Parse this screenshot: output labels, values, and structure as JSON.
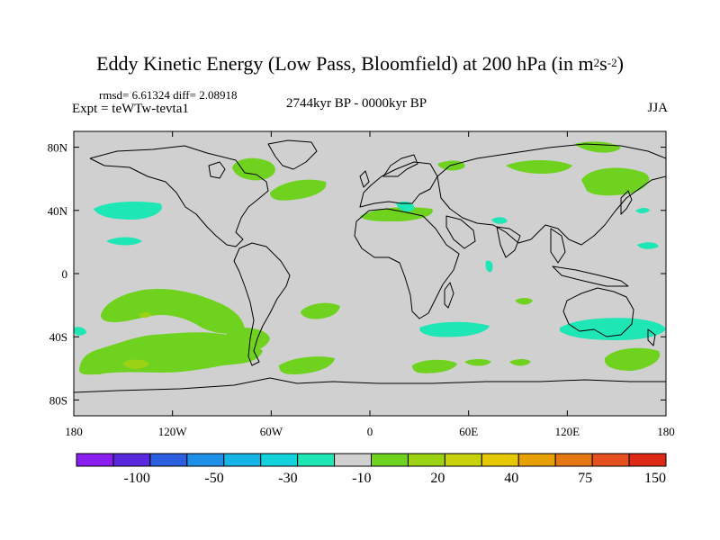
{
  "title_main": "Eddy Kinetic Energy (Low Pass, Bloomfield) at 200 hPa (in m",
  "title_sup1": "2",
  "title_mid": "s",
  "title_sup2": "-2",
  "title_end": ")",
  "stats": "rmsd= 6.61324  diff= 2.08918",
  "experiment": "Expt = teWTw-tevta1",
  "period": "2744kyr BP - 0000kyr BP",
  "season": "JJA",
  "map": {
    "background_color": "#d0d0d0",
    "lat_ticks": [
      {
        "lat": 80,
        "label": "80N"
      },
      {
        "lat": 40,
        "label": "40N"
      },
      {
        "lat": 0,
        "label": "0"
      },
      {
        "lat": -40,
        "label": "40S"
      },
      {
        "lat": -80,
        "label": "80S"
      }
    ],
    "lon_ticks": [
      {
        "lon": -180,
        "label": "180"
      },
      {
        "lon": -120,
        "label": "120W"
      },
      {
        "lon": -60,
        "label": "60W"
      },
      {
        "lon": 0,
        "label": "0"
      },
      {
        "lon": 60,
        "label": "60E"
      },
      {
        "lon": 120,
        "label": "120E"
      },
      {
        "lon": 180,
        "label": "180"
      }
    ]
  },
  "colorbar": {
    "colors": [
      "#8a1ef0",
      "#5a28dc",
      "#2c5ee0",
      "#1e90e8",
      "#14b4e6",
      "#14d2dc",
      "#1ee6b4",
      "#d0d0d0",
      "#6ed21e",
      "#9cd214",
      "#c8d20a",
      "#e6c800",
      "#e6a000",
      "#e67814",
      "#e6501e",
      "#dc2814"
    ],
    "labels": [
      {
        "after_box": 2,
        "text": "-100"
      },
      {
        "after_box": 4,
        "text": "-50"
      },
      {
        "after_box": 6,
        "text": "-30"
      },
      {
        "after_box": 8,
        "text": "-10"
      },
      {
        "after_box": 10,
        "text": "20"
      },
      {
        "after_box": 12,
        "text": "40"
      },
      {
        "after_box": 14,
        "text": "75"
      },
      {
        "after_box": 16,
        "text": "150"
      }
    ]
  }
}
